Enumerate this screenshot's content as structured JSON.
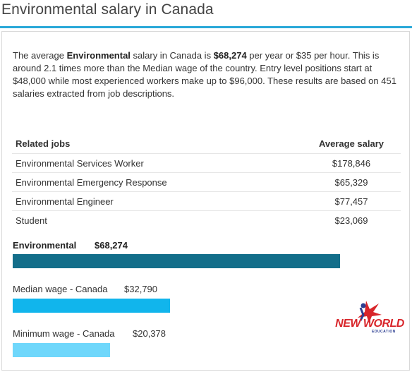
{
  "page": {
    "title": "Environmental salary in Canada"
  },
  "summary": {
    "p1": "The average ",
    "job": "Environmental",
    "p2": " salary in Canada is ",
    "amount": "$68,274",
    "p3": " per year or $35 per hour. This is around 2.1 times more than the Median wage of the country. Entry level positions start at $48,000 while most experienced workers make up to $96,000. These results are based on 451 salaries extracted from job descriptions."
  },
  "table": {
    "headers": {
      "job": "Related jobs",
      "salary": "Average salary"
    },
    "rows": [
      {
        "job": "Environmental Services Worker",
        "salary": "$178,846"
      },
      {
        "job": "Environmental Emergency Response",
        "salary": "$65,329"
      },
      {
        "job": "Environmental Engineer",
        "salary": "$77,457"
      },
      {
        "job": "Student",
        "salary": "$23,069"
      }
    ]
  },
  "bars": [
    {
      "label": "Environmental",
      "value_text": "$68,274",
      "value": 68274,
      "color": "#136e8a",
      "bold": true
    },
    {
      "label": "Median wage - Canada",
      "value_text": "$32,790",
      "value": 32790,
      "color": "#11b5ec",
      "bold": false
    },
    {
      "label": "Minimum wage - Canada",
      "value_text": "$20,378",
      "value": 20378,
      "color": "#6fd7fb",
      "bold": false
    }
  ],
  "logo": {
    "text": "NEW WORLD",
    "sub": "EDUCATION",
    "colors": {
      "red": "#d8252a",
      "blue": "#2c3e91"
    }
  },
  "accent": "#29a8d8"
}
